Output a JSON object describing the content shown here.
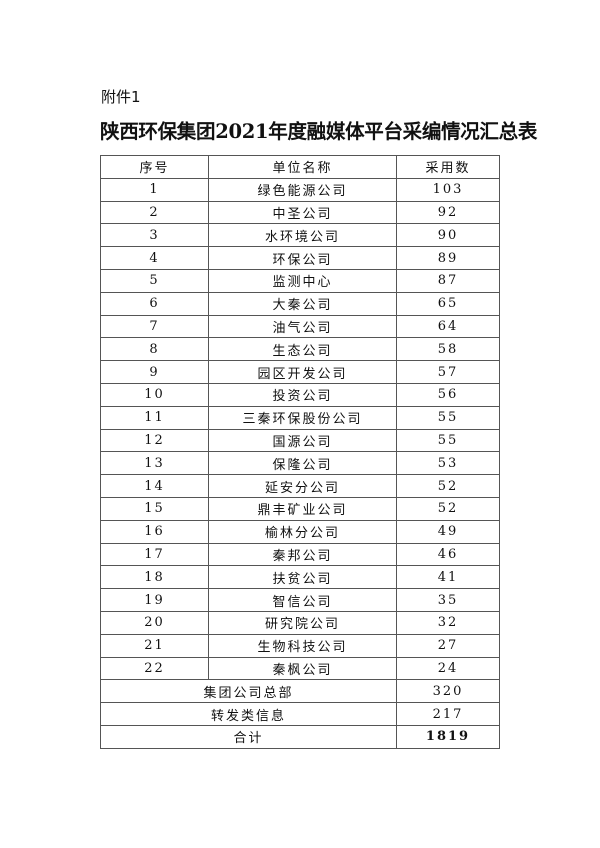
{
  "attachment_label": "附件1",
  "title": "陕西环保集团2021年度融媒体平台采编情况汇总表",
  "headers": [
    "序号",
    "单位名称",
    "采用数"
  ],
  "rows": [
    [
      "1",
      "绿色能源公司",
      "103"
    ],
    [
      "2",
      "中圣公司",
      "92"
    ],
    [
      "3",
      "水环境公司",
      "90"
    ],
    [
      "4",
      "环保公司",
      "89"
    ],
    [
      "5",
      "监测中心",
      "87"
    ],
    [
      "6",
      "大秦公司",
      "65"
    ],
    [
      "7",
      "油气公司",
      "64"
    ],
    [
      "8",
      "生态公司",
      "58"
    ],
    [
      "9",
      "园区开发公司",
      "57"
    ],
    [
      "10",
      "投资公司",
      "56"
    ],
    [
      "11",
      "三秦环保股份公司",
      "55"
    ],
    [
      "12",
      "国源公司",
      "55"
    ],
    [
      "13",
      "保隆公司",
      "53"
    ],
    [
      "14",
      "延安分公司",
      "52"
    ],
    [
      "15",
      "鼎丰矿业公司",
      "52"
    ],
    [
      "16",
      "榆林分公司",
      "49"
    ],
    [
      "17",
      "秦邦公司",
      "46"
    ],
    [
      "18",
      "扶贫公司",
      "41"
    ],
    [
      "19",
      "智信公司",
      "35"
    ],
    [
      "20",
      "研究院公司",
      "32"
    ],
    [
      "21",
      "生物科技公司",
      "27"
    ],
    [
      "22",
      "秦枫公司",
      "24"
    ]
  ],
  "summary_rows": [
    [
      "集团公司总部",
      "320"
    ],
    [
      "转发类信息",
      "217"
    ]
  ],
  "total": [
    "合计",
    "1819"
  ]
}
